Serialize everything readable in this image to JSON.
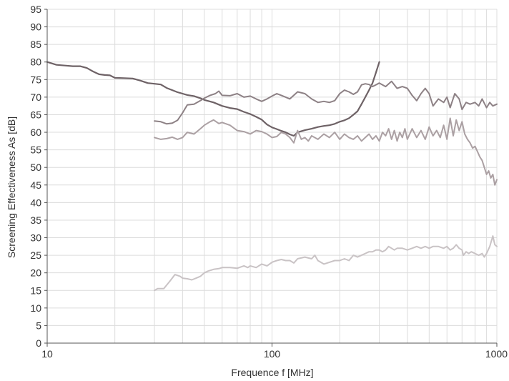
{
  "chart_data": {
    "type": "line",
    "title": "",
    "xlabel": "Frequence f [MHz]",
    "ylabel": "Screening Effectiveness As [dB]",
    "x_scale": "log",
    "xlim": [
      10,
      1000
    ],
    "ylim": [
      0,
      95
    ],
    "grid": true,
    "x_ticks": [
      {
        "value": 10,
        "label": "10"
      },
      {
        "value": 100,
        "label": "100"
      },
      {
        "value": 1000,
        "label": "1000"
      }
    ],
    "x_minor_ticks": [
      20,
      30,
      40,
      50,
      60,
      70,
      80,
      90,
      200,
      300,
      400,
      500,
      600,
      700,
      800,
      900
    ],
    "y_ticks": [
      0,
      5,
      10,
      15,
      20,
      25,
      30,
      35,
      40,
      45,
      50,
      55,
      60,
      65,
      70,
      75,
      80,
      85,
      90,
      95
    ],
    "series": [
      {
        "color": "#6e6266",
        "width": 2.2,
        "points": [
          [
            10,
            80
          ],
          [
            11,
            79.2
          ],
          [
            12,
            79
          ],
          [
            13,
            78.8
          ],
          [
            14,
            78.8
          ],
          [
            15,
            78.3
          ],
          [
            16,
            77.3
          ],
          [
            17,
            76.5
          ],
          [
            18,
            76.3
          ],
          [
            19,
            76.2
          ],
          [
            20,
            75.5
          ],
          [
            22,
            75.4
          ],
          [
            24,
            75.3
          ],
          [
            26,
            74.7
          ],
          [
            28,
            74.0
          ],
          [
            30,
            73.8
          ],
          [
            32,
            73.6
          ],
          [
            34,
            72.6
          ],
          [
            36,
            72.0
          ],
          [
            38,
            71.4
          ],
          [
            40,
            71.0
          ],
          [
            42,
            70.6
          ],
          [
            45,
            70.3
          ],
          [
            48,
            69.7
          ],
          [
            50,
            69.2
          ],
          [
            55,
            68.5
          ],
          [
            60,
            67.5
          ],
          [
            65,
            66.9
          ],
          [
            70,
            66.6
          ],
          [
            75,
            65.8
          ],
          [
            80,
            65.2
          ],
          [
            85,
            64.4
          ],
          [
            90,
            63.6
          ],
          [
            95,
            62.2
          ],
          [
            100,
            61.4
          ],
          [
            105,
            60.9
          ],
          [
            110,
            60.4
          ],
          [
            115,
            60.0
          ],
          [
            120,
            59.4
          ],
          [
            125,
            59.0
          ],
          [
            130,
            60.0
          ],
          [
            140,
            60.6
          ],
          [
            150,
            61.0
          ],
          [
            160,
            61.5
          ],
          [
            170,
            61.8
          ],
          [
            180,
            62.0
          ],
          [
            190,
            62.4
          ],
          [
            200,
            63.0
          ],
          [
            210,
            63.4
          ],
          [
            220,
            64.0
          ],
          [
            230,
            65.0
          ],
          [
            240,
            66.0
          ],
          [
            250,
            68.0
          ],
          [
            260,
            70.0
          ],
          [
            270,
            72.0
          ],
          [
            280,
            74.0
          ],
          [
            290,
            77.0
          ],
          [
            300,
            80.0
          ]
        ]
      },
      {
        "color": "#8d8185",
        "width": 2.0,
        "points": [
          [
            30,
            63.2
          ],
          [
            32,
            63.0
          ],
          [
            34,
            62.4
          ],
          [
            36,
            62.6
          ],
          [
            38,
            63.4
          ],
          [
            40,
            65.5
          ],
          [
            42,
            67.8
          ],
          [
            45,
            68.0
          ],
          [
            48,
            69.0
          ],
          [
            50,
            69.7
          ],
          [
            53,
            70.5
          ],
          [
            56,
            71.0
          ],
          [
            58,
            71.7
          ],
          [
            60,
            70.5
          ],
          [
            65,
            70.4
          ],
          [
            70,
            71.0
          ],
          [
            75,
            70.0
          ],
          [
            80,
            70.3
          ],
          [
            85,
            69.5
          ],
          [
            90,
            68.8
          ],
          [
            95,
            69.5
          ],
          [
            100,
            70.3
          ],
          [
            105,
            71.0
          ],
          [
            110,
            70.5
          ],
          [
            115,
            70.0
          ],
          [
            120,
            69.5
          ],
          [
            130,
            71.5
          ],
          [
            140,
            71.0
          ],
          [
            150,
            69.5
          ],
          [
            160,
            68.5
          ],
          [
            170,
            68.8
          ],
          [
            180,
            68.5
          ],
          [
            190,
            69.0
          ],
          [
            200,
            71.0
          ],
          [
            210,
            72.0
          ],
          [
            220,
            71.5
          ],
          [
            230,
            70.8
          ],
          [
            240,
            71.5
          ],
          [
            250,
            73.5
          ],
          [
            260,
            73.8
          ],
          [
            270,
            73.6
          ],
          [
            280,
            73.0
          ],
          [
            300,
            74.0
          ],
          [
            320,
            73.0
          ],
          [
            340,
            74.5
          ],
          [
            360,
            72.5
          ],
          [
            380,
            73.0
          ],
          [
            400,
            72.5
          ],
          [
            420,
            70.5
          ],
          [
            440,
            69.0
          ],
          [
            460,
            71.0
          ],
          [
            480,
            72.5
          ],
          [
            500,
            71.0
          ],
          [
            520,
            67.5
          ],
          [
            550,
            69.5
          ],
          [
            580,
            68.5
          ],
          [
            600,
            70.0
          ],
          [
            620,
            67.0
          ],
          [
            650,
            71.0
          ],
          [
            680,
            69.5
          ],
          [
            700,
            66.5
          ],
          [
            730,
            68.5
          ],
          [
            760,
            68.0
          ],
          [
            800,
            68.5
          ],
          [
            830,
            67.5
          ],
          [
            860,
            69.5
          ],
          [
            900,
            67.0
          ],
          [
            930,
            68.5
          ],
          [
            960,
            67.5
          ],
          [
            1000,
            68.0
          ]
        ]
      },
      {
        "color": "#aba0a3",
        "width": 2.0,
        "points": [
          [
            30,
            58.5
          ],
          [
            32,
            58.0
          ],
          [
            34,
            58.2
          ],
          [
            36,
            58.6
          ],
          [
            38,
            58.0
          ],
          [
            40,
            58.5
          ],
          [
            42,
            60.0
          ],
          [
            45,
            59.5
          ],
          [
            48,
            61.0
          ],
          [
            50,
            62.0
          ],
          [
            53,
            63.0
          ],
          [
            55,
            63.5
          ],
          [
            58,
            62.5
          ],
          [
            60,
            62.8
          ],
          [
            65,
            62.0
          ],
          [
            70,
            60.5
          ],
          [
            75,
            60.2
          ],
          [
            80,
            59.5
          ],
          [
            85,
            60.5
          ],
          [
            90,
            60.2
          ],
          [
            95,
            59.5
          ],
          [
            100,
            58.5
          ],
          [
            105,
            58.8
          ],
          [
            110,
            60.0
          ],
          [
            115,
            59.5
          ],
          [
            120,
            58.5
          ],
          [
            125,
            57.0
          ],
          [
            130,
            60.5
          ],
          [
            135,
            58.0
          ],
          [
            140,
            58.5
          ],
          [
            145,
            57.5
          ],
          [
            150,
            59.0
          ],
          [
            160,
            58.0
          ],
          [
            170,
            59.5
          ],
          [
            180,
            58.5
          ],
          [
            190,
            60.0
          ],
          [
            200,
            58.0
          ],
          [
            210,
            59.5
          ],
          [
            220,
            58.5
          ],
          [
            230,
            58.0
          ],
          [
            240,
            59.0
          ],
          [
            250,
            57.5
          ],
          [
            260,
            58.5
          ],
          [
            270,
            59.5
          ],
          [
            280,
            58.0
          ],
          [
            290,
            59.0
          ],
          [
            300,
            57.5
          ],
          [
            310,
            60.0
          ],
          [
            320,
            59.0
          ],
          [
            330,
            61.0
          ],
          [
            340,
            58.0
          ],
          [
            350,
            60.5
          ],
          [
            360,
            57.5
          ],
          [
            370,
            60.0
          ],
          [
            380,
            58.5
          ],
          [
            390,
            61.0
          ],
          [
            400,
            58.0
          ],
          [
            420,
            61.0
          ],
          [
            440,
            58.5
          ],
          [
            460,
            60.5
          ],
          [
            480,
            58.0
          ],
          [
            500,
            61.5
          ],
          [
            520,
            59.0
          ],
          [
            540,
            60.5
          ],
          [
            560,
            58.5
          ],
          [
            580,
            62.0
          ],
          [
            600,
            58.0
          ],
          [
            620,
            64.0
          ],
          [
            640,
            59.0
          ],
          [
            660,
            63.5
          ],
          [
            680,
            60.5
          ],
          [
            700,
            63.0
          ],
          [
            720,
            59.5
          ],
          [
            740,
            58.0
          ],
          [
            760,
            57.0
          ],
          [
            780,
            55.5
          ],
          [
            800,
            56.0
          ],
          [
            820,
            54.5
          ],
          [
            840,
            53.0
          ],
          [
            860,
            52.0
          ],
          [
            880,
            50.0
          ],
          [
            900,
            48.0
          ],
          [
            920,
            49.0
          ],
          [
            940,
            47.0
          ],
          [
            960,
            48.0
          ],
          [
            980,
            45.0
          ],
          [
            1000,
            46.5
          ]
        ]
      },
      {
        "color": "#c9c3c5",
        "width": 2.0,
        "points": [
          [
            30,
            15.0
          ],
          [
            31,
            15.5
          ],
          [
            33,
            15.5
          ],
          [
            35,
            17.5
          ],
          [
            37,
            19.5
          ],
          [
            39,
            19.0
          ],
          [
            40,
            18.5
          ],
          [
            42,
            18.3
          ],
          [
            44,
            18.0
          ],
          [
            46,
            18.5
          ],
          [
            48,
            19.0
          ],
          [
            50,
            20.0
          ],
          [
            52,
            20.5
          ],
          [
            55,
            21.0
          ],
          [
            58,
            21.2
          ],
          [
            60,
            21.5
          ],
          [
            65,
            21.5
          ],
          [
            70,
            21.3
          ],
          [
            75,
            22.0
          ],
          [
            78,
            21.5
          ],
          [
            80,
            22.0
          ],
          [
            85,
            21.5
          ],
          [
            90,
            22.5
          ],
          [
            95,
            22.0
          ],
          [
            100,
            23.0
          ],
          [
            105,
            23.5
          ],
          [
            110,
            23.8
          ],
          [
            115,
            23.5
          ],
          [
            120,
            23.5
          ],
          [
            125,
            22.8
          ],
          [
            130,
            24.0
          ],
          [
            140,
            24.5
          ],
          [
            150,
            24.0
          ],
          [
            155,
            25.0
          ],
          [
            160,
            23.5
          ],
          [
            170,
            22.5
          ],
          [
            180,
            23.0
          ],
          [
            190,
            23.5
          ],
          [
            200,
            23.5
          ],
          [
            210,
            24.0
          ],
          [
            220,
            23.5
          ],
          [
            230,
            25.0
          ],
          [
            240,
            24.5
          ],
          [
            250,
            25.0
          ],
          [
            260,
            25.5
          ],
          [
            270,
            26.0
          ],
          [
            280,
            26.0
          ],
          [
            290,
            26.5
          ],
          [
            300,
            26.5
          ],
          [
            310,
            26.0
          ],
          [
            320,
            26.5
          ],
          [
            330,
            27.5
          ],
          [
            340,
            27.0
          ],
          [
            350,
            26.5
          ],
          [
            360,
            27.0
          ],
          [
            380,
            27.0
          ],
          [
            400,
            26.5
          ],
          [
            420,
            27.0
          ],
          [
            440,
            27.5
          ],
          [
            460,
            27.0
          ],
          [
            480,
            27.5
          ],
          [
            500,
            27.0
          ],
          [
            520,
            27.5
          ],
          [
            550,
            27.5
          ],
          [
            580,
            27.0
          ],
          [
            600,
            27.5
          ],
          [
            620,
            26.5
          ],
          [
            640,
            27.0
          ],
          [
            660,
            28.0
          ],
          [
            680,
            27.0
          ],
          [
            700,
            26.5
          ],
          [
            710,
            25.0
          ],
          [
            730,
            26.0
          ],
          [
            750,
            25.5
          ],
          [
            770,
            26.0
          ],
          [
            800,
            25.5
          ],
          [
            830,
            25.0
          ],
          [
            860,
            25.5
          ],
          [
            880,
            24.5
          ],
          [
            900,
            25.5
          ],
          [
            930,
            27.5
          ],
          [
            960,
            30.5
          ],
          [
            980,
            28.0
          ],
          [
            1000,
            27.5
          ]
        ]
      }
    ]
  }
}
